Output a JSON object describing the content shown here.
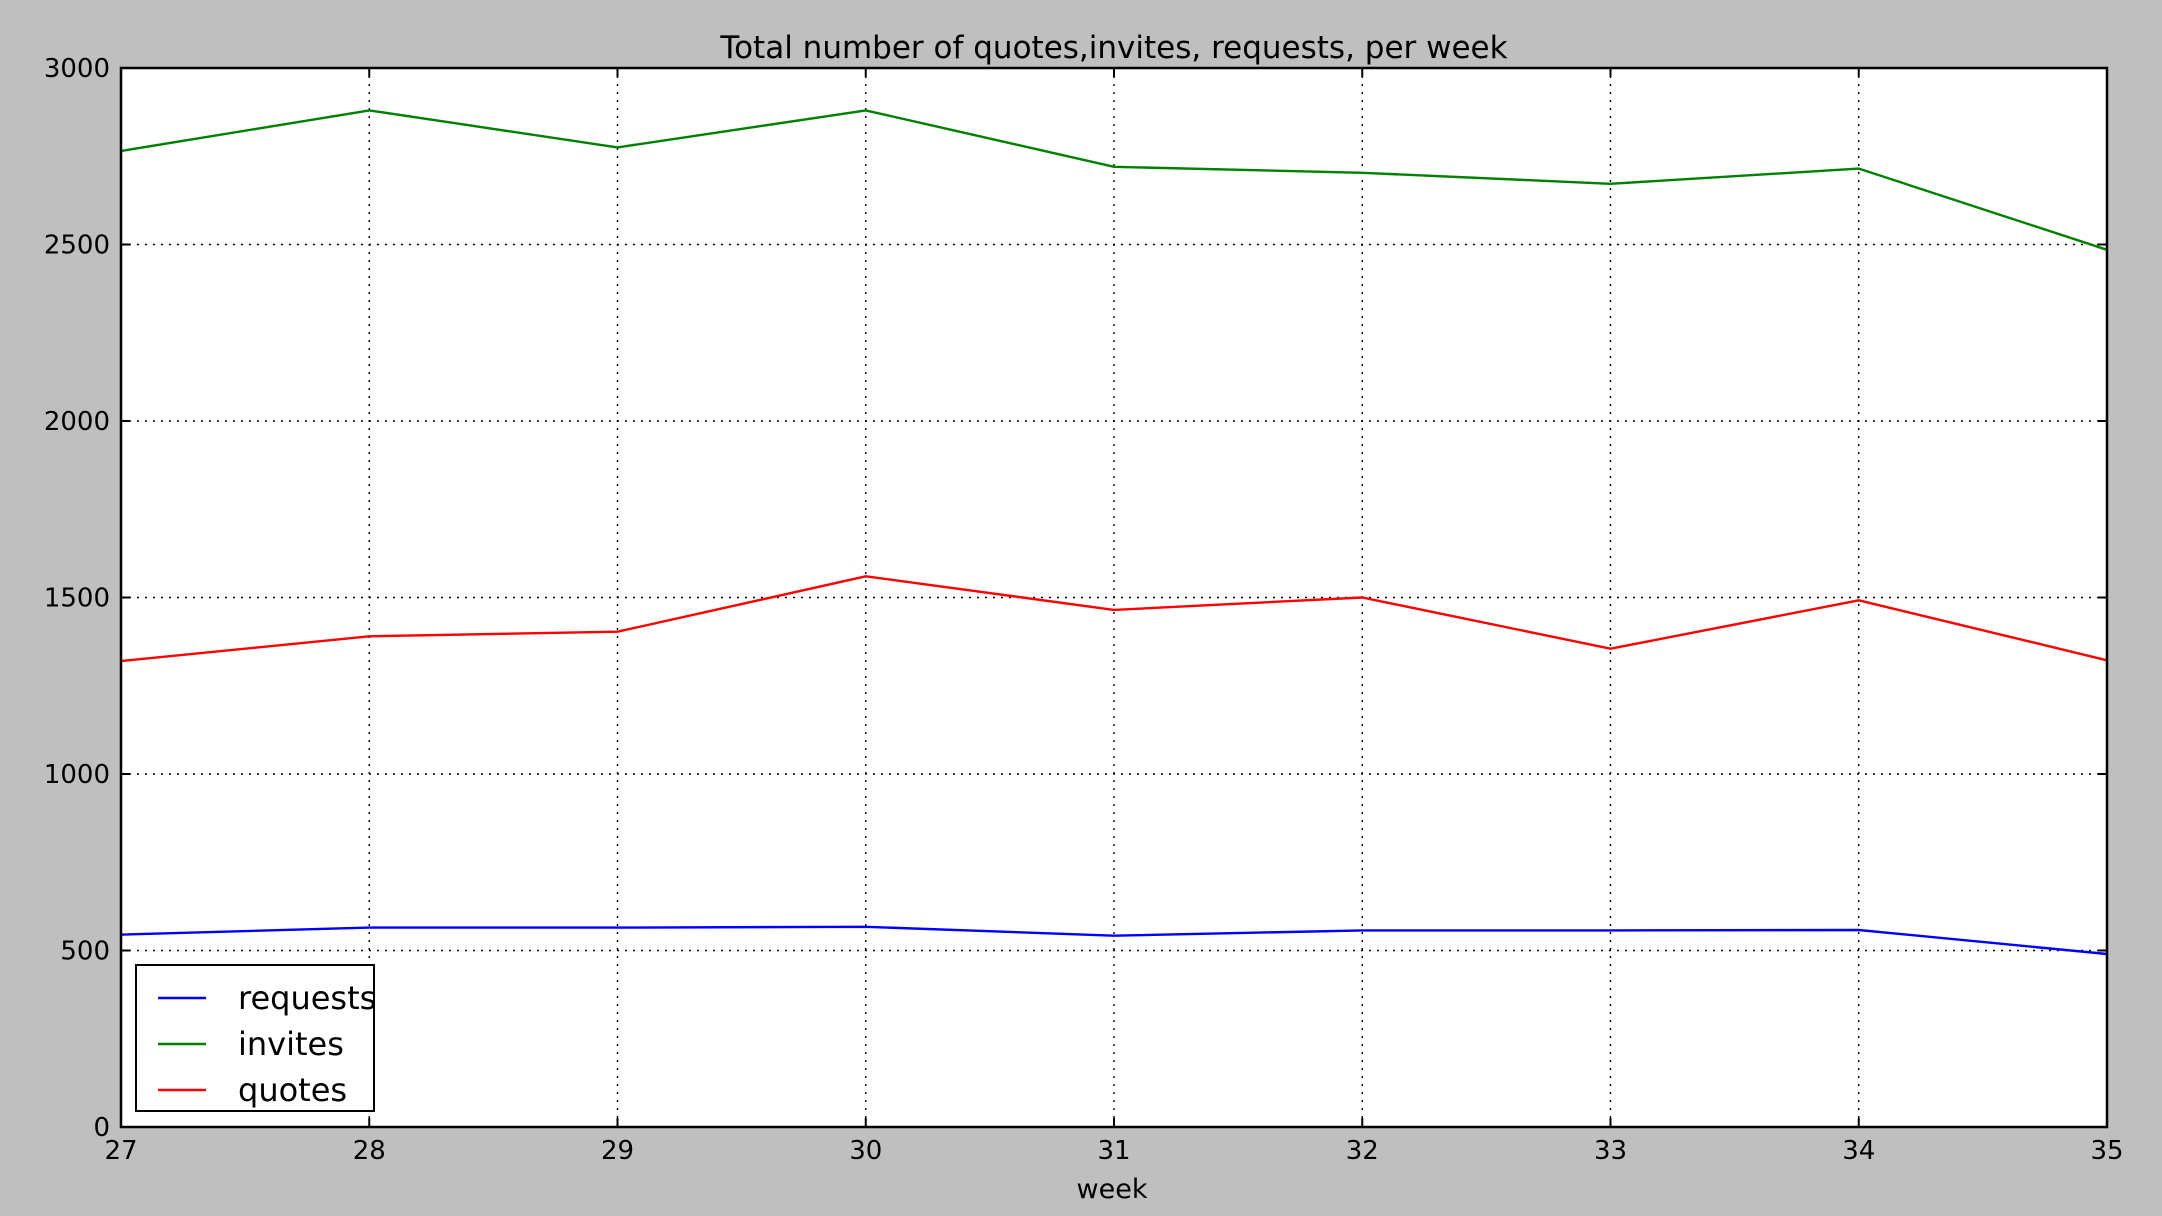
{
  "chart_data": {
    "type": "line",
    "title": "Total number of quotes,invites, requests, per week",
    "xlabel": "week",
    "ylabel": "",
    "x": [
      27,
      28,
      29,
      30,
      31,
      32,
      33,
      34,
      35
    ],
    "xlim": [
      27,
      35
    ],
    "ylim": [
      0,
      3000
    ],
    "xticks": [
      "27",
      "28",
      "29",
      "30",
      "31",
      "32",
      "33",
      "34",
      "35"
    ],
    "yticks": [
      "0",
      "500",
      "1000",
      "1500",
      "2000",
      "2500",
      "3000"
    ],
    "grid": true,
    "legend_position": "bottom-left",
    "series": [
      {
        "name": "requests",
        "color": "#0000ff",
        "values": [
          545,
          565,
          565,
          567,
          542,
          557,
          557,
          558,
          490
        ]
      },
      {
        "name": "invites",
        "color": "#008000",
        "values": [
          2765,
          2880,
          2775,
          2880,
          2720,
          2703,
          2672,
          2715,
          2485
        ]
      },
      {
        "name": "quotes",
        "color": "#ff0000",
        "values": [
          1320,
          1390,
          1403,
          1560,
          1465,
          1500,
          1355,
          1492,
          1322
        ]
      }
    ]
  }
}
